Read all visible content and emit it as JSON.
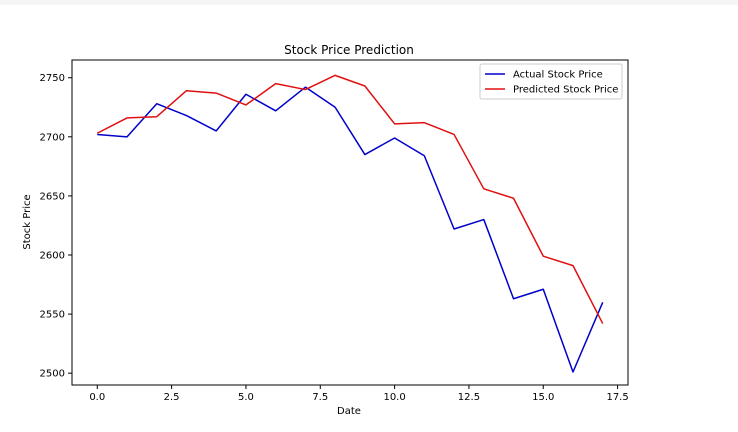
{
  "chart_data": {
    "type": "line",
    "title": "Stock Price Prediction",
    "xlabel": "Date",
    "ylabel": "Stock Price",
    "xlim": [
      -0.85,
      17.85
    ],
    "ylim": [
      2490,
      2765
    ],
    "xticks": [
      0,
      2.5,
      5,
      7.5,
      10,
      12.5,
      15,
      17.5
    ],
    "xtick_labels": [
      "0.0",
      "2.5",
      "5.0",
      "7.5",
      "10.0",
      "12.5",
      "15.0",
      "17.5"
    ],
    "yticks": [
      2500,
      2550,
      2600,
      2650,
      2700,
      2750
    ],
    "ytick_labels": [
      "2500",
      "2550",
      "2600",
      "2650",
      "2700",
      "2750"
    ],
    "grid": false,
    "legend_position": "top-right",
    "x": [
      0,
      1,
      2,
      3,
      4,
      5,
      6,
      7,
      8,
      9,
      10,
      11,
      12,
      13,
      14,
      15,
      16,
      17
    ],
    "series": [
      {
        "name": "Actual Stock Price",
        "color": "#0000cc",
        "values": [
          2702,
          2700,
          2728,
          2718,
          2705,
          2736,
          2722,
          2742,
          2725,
          2685,
          2699,
          2684,
          2622,
          2630,
          2563,
          2571,
          2501,
          2560
        ]
      },
      {
        "name": "Predicted Stock Price",
        "color": "#e01010",
        "values": [
          2703,
          2716,
          2717,
          2739,
          2737,
          2727,
          2745,
          2740,
          2752,
          2743,
          2711,
          2712,
          2702,
          2656,
          2648,
          2599,
          2591,
          2542
        ]
      }
    ]
  }
}
